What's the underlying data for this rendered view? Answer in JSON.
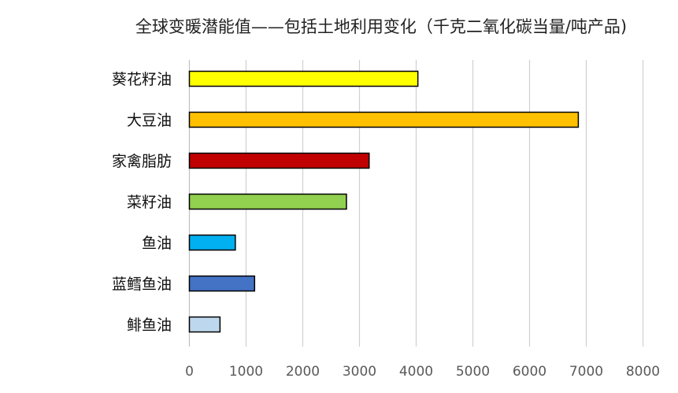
{
  "chart_data": {
    "type": "bar",
    "orientation": "horizontal",
    "title": "全球变暖潜能值——包括土地利用变化（千克二氧化碳当量/吨产品)",
    "xlabel": "",
    "ylabel": "",
    "categories": [
      "葵花籽油",
      "大豆油",
      "家禽脂肪",
      "菜籽油",
      "鱼油",
      "蓝鳕鱼油",
      "鲱鱼油"
    ],
    "values": [
      4030,
      6860,
      3170,
      2770,
      810,
      1150,
      540
    ],
    "colors": [
      "#ffff00",
      "#ffc000",
      "#c00000",
      "#92d050",
      "#00b0f0",
      "#4472c4",
      "#bdd7ee"
    ],
    "xlim": [
      0,
      8000
    ],
    "xticks": [
      "0",
      "1000",
      "2000",
      "3000",
      "4000",
      "5000",
      "6000",
      "7000",
      "8000"
    ],
    "grid": true,
    "legend": "none"
  }
}
